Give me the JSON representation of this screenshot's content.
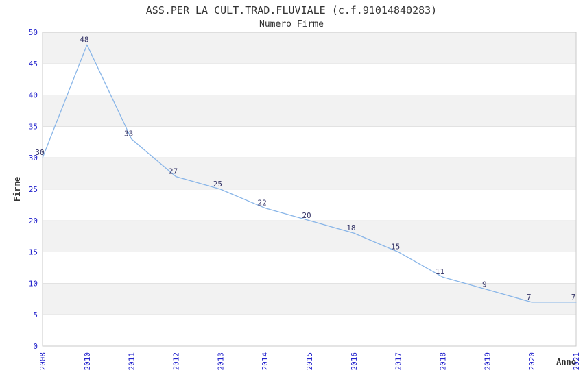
{
  "chart_data": {
    "type": "line",
    "title": "ASS.PER LA CULT.TRAD.FLUVIALE (c.f.91014840283)",
    "subtitle": "Numero Firme",
    "xlabel": "Anno",
    "ylabel": "Firme",
    "categories": [
      "2008",
      "2010",
      "2011",
      "2012",
      "2013",
      "2014",
      "2015",
      "2016",
      "2017",
      "2018",
      "2019",
      "2020",
      "2021"
    ],
    "values": [
      30,
      48,
      33,
      27,
      25,
      22,
      20,
      18,
      15,
      11,
      9,
      7,
      7
    ],
    "ylim": [
      0,
      50
    ],
    "ytick_step": 5,
    "grid": "horizontal-bands-alternating",
    "legend": "none",
    "point_labels_visible": true,
    "x_tick_rotation": 90
  },
  "colors": {
    "line": "#88B5E8",
    "tick_label": "#2222CC",
    "data_label": "#333366",
    "band_gray": "#F2F2F2",
    "band_white": "#FFFFFF",
    "grid_line": "#E2E2E2",
    "plot_border": "#C9C9C9",
    "title_text": "#333333",
    "background": "#FFFFFF"
  }
}
